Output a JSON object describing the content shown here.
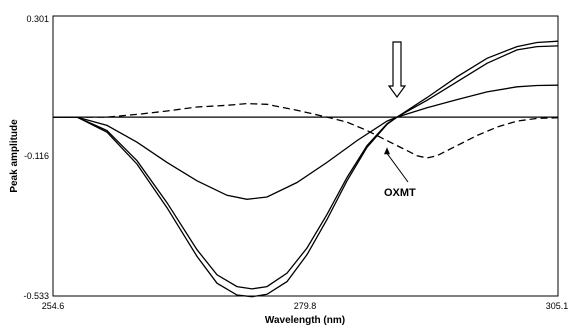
{
  "chart_data": {
    "type": "line",
    "xlabel": "Wavelength (nm)",
    "ylabel": "Peak amplitude",
    "xlim": [
      254.6,
      305.1
    ],
    "ylim": [
      -0.533,
      0.301
    ],
    "x_ticks": [
      "254.6",
      "279.8",
      "305.1"
    ],
    "y_ticks": [
      "0.301",
      "-0.116",
      "-0.533"
    ],
    "grid": false,
    "annotation": {
      "text": "OXMT",
      "arrow_to": [
        288.0,
        -0.09
      ]
    },
    "marker": {
      "type": "down-arrow",
      "x": 289.0
    },
    "series": [
      {
        "style": "solid",
        "points": [
          [
            254.6,
            0.0
          ],
          [
            257,
            0.0
          ],
          [
            258,
            0.0
          ],
          [
            260,
            0.0
          ],
          [
            264,
            0.0
          ],
          [
            268,
            0.0
          ],
          [
            272,
            0.0
          ],
          [
            276,
            0.0
          ],
          [
            280,
            0.0
          ],
          [
            284,
            0.0
          ],
          [
            288,
            0.0
          ],
          [
            292,
            0.0
          ],
          [
            296,
            0.0
          ],
          [
            300,
            0.0
          ],
          [
            305.1,
            0.0
          ]
        ]
      },
      {
        "style": "solid",
        "points": [
          [
            254.6,
            0.0
          ],
          [
            257,
            0.0
          ],
          [
            260,
            -0.025
          ],
          [
            263,
            -0.075
          ],
          [
            266,
            -0.135
          ],
          [
            269,
            -0.19
          ],
          [
            272,
            -0.233
          ],
          [
            274,
            -0.245
          ],
          [
            276,
            -0.238
          ],
          [
            279,
            -0.195
          ],
          [
            282,
            -0.135
          ],
          [
            285,
            -0.07
          ],
          [
            288,
            -0.012
          ],
          [
            289,
            0.0
          ],
          [
            292,
            0.028
          ],
          [
            295,
            0.052
          ],
          [
            298,
            0.075
          ],
          [
            301,
            0.09
          ],
          [
            303,
            0.094
          ],
          [
            305.1,
            0.095
          ]
        ]
      },
      {
        "style": "solid",
        "points": [
          [
            254.6,
            0.0
          ],
          [
            257,
            0.0
          ],
          [
            260,
            -0.04
          ],
          [
            263,
            -0.13
          ],
          [
            266,
            -0.255
          ],
          [
            269,
            -0.395
          ],
          [
            271,
            -0.47
          ],
          [
            273,
            -0.505
          ],
          [
            274.5,
            -0.512
          ],
          [
            276,
            -0.505
          ],
          [
            278,
            -0.465
          ],
          [
            280,
            -0.39
          ],
          [
            282,
            -0.29
          ],
          [
            284,
            -0.18
          ],
          [
            286,
            -0.085
          ],
          [
            288,
            -0.02
          ],
          [
            289,
            0.0
          ],
          [
            292,
            0.05
          ],
          [
            295,
            0.105
          ],
          [
            298,
            0.16
          ],
          [
            301,
            0.2
          ],
          [
            303,
            0.21
          ],
          [
            305.1,
            0.212
          ]
        ]
      },
      {
        "style": "solid",
        "points": [
          [
            254.6,
            0.0
          ],
          [
            257,
            0.0
          ],
          [
            260,
            -0.045
          ],
          [
            263,
            -0.14
          ],
          [
            266,
            -0.27
          ],
          [
            269,
            -0.415
          ],
          [
            271,
            -0.495
          ],
          [
            273,
            -0.53
          ],
          [
            274.5,
            -0.535
          ],
          [
            276,
            -0.528
          ],
          [
            278,
            -0.49
          ],
          [
            280,
            -0.41
          ],
          [
            282,
            -0.305
          ],
          [
            284,
            -0.19
          ],
          [
            286,
            -0.09
          ],
          [
            288,
            -0.022
          ],
          [
            289,
            0.0
          ],
          [
            292,
            0.058
          ],
          [
            295,
            0.12
          ],
          [
            298,
            0.175
          ],
          [
            301,
            0.21
          ],
          [
            303,
            0.222
          ],
          [
            305.1,
            0.226
          ]
        ]
      },
      {
        "style": "dashed",
        "points": [
          [
            254.6,
            0.0
          ],
          [
            257,
            0.0
          ],
          [
            260,
            0.0
          ],
          [
            263,
            0.008
          ],
          [
            266,
            0.018
          ],
          [
            269,
            0.03
          ],
          [
            272,
            0.035
          ],
          [
            274,
            0.04
          ],
          [
            276,
            0.038
          ],
          [
            279,
            0.02
          ],
          [
            282,
            0.0
          ],
          [
            284,
            -0.015
          ],
          [
            286,
            -0.04
          ],
          [
            288,
            -0.07
          ],
          [
            290,
            -0.1
          ],
          [
            291,
            -0.115
          ],
          [
            292,
            -0.122
          ],
          [
            293,
            -0.115
          ],
          [
            295,
            -0.085
          ],
          [
            297,
            -0.055
          ],
          [
            299,
            -0.03
          ],
          [
            301,
            -0.012
          ],
          [
            303,
            -0.004
          ],
          [
            305.1,
            -0.002
          ]
        ]
      }
    ]
  }
}
